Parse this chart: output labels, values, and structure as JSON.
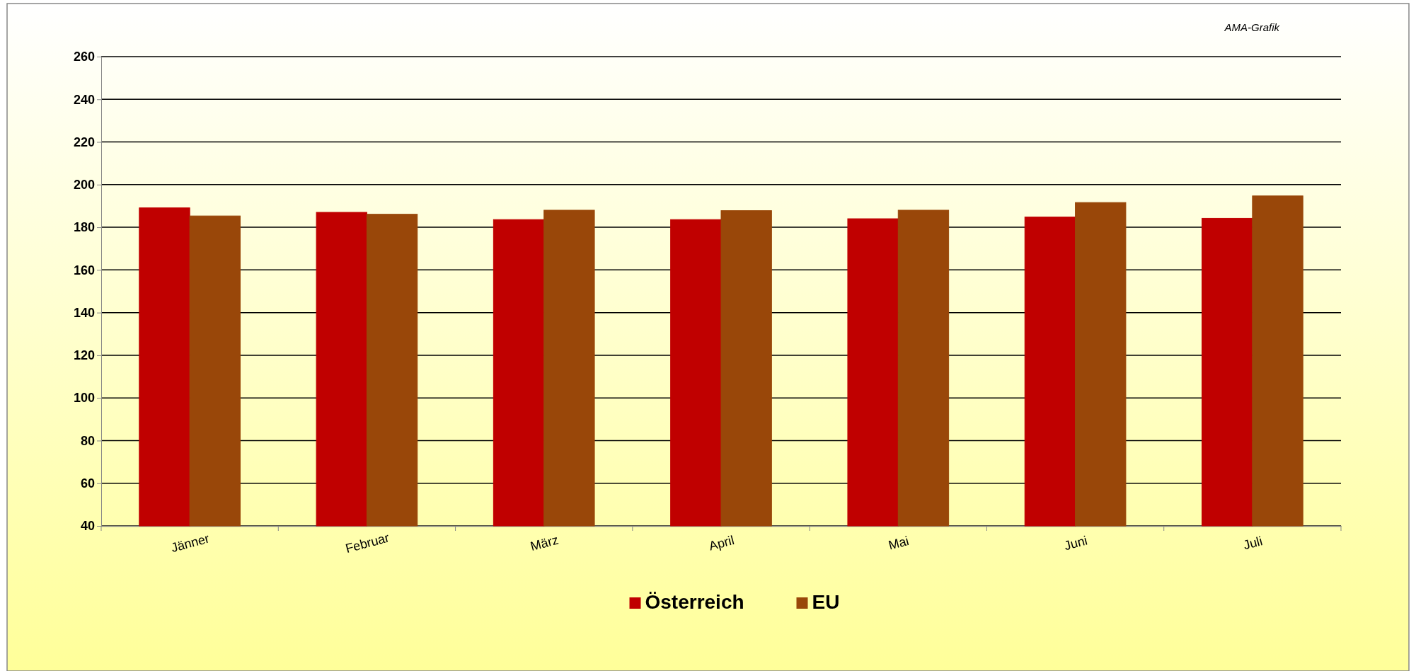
{
  "chart_data": {
    "type": "bar",
    "annotations": [
      "AMA-Grafik"
    ],
    "categories": [
      "Jänner",
      "Februar",
      "März",
      "April",
      "Mai",
      "Juni",
      "Juli"
    ],
    "series": [
      {
        "name": "Österreich",
        "color": "#c00000",
        "values": [
          189.1,
          187.0,
          183.6,
          183.6,
          184.0,
          184.8,
          184.2
        ]
      },
      {
        "name": "EU",
        "color": "#994709",
        "values": [
          185.3,
          186.1,
          188.0,
          187.8,
          188.0,
          191.6,
          194.7
        ]
      }
    ],
    "ylim": [
      40,
      260
    ],
    "yticks": [
      40,
      60,
      80,
      100,
      120,
      140,
      160,
      180,
      200,
      220,
      240,
      260
    ],
    "grid": "y",
    "legend": "bottom"
  }
}
